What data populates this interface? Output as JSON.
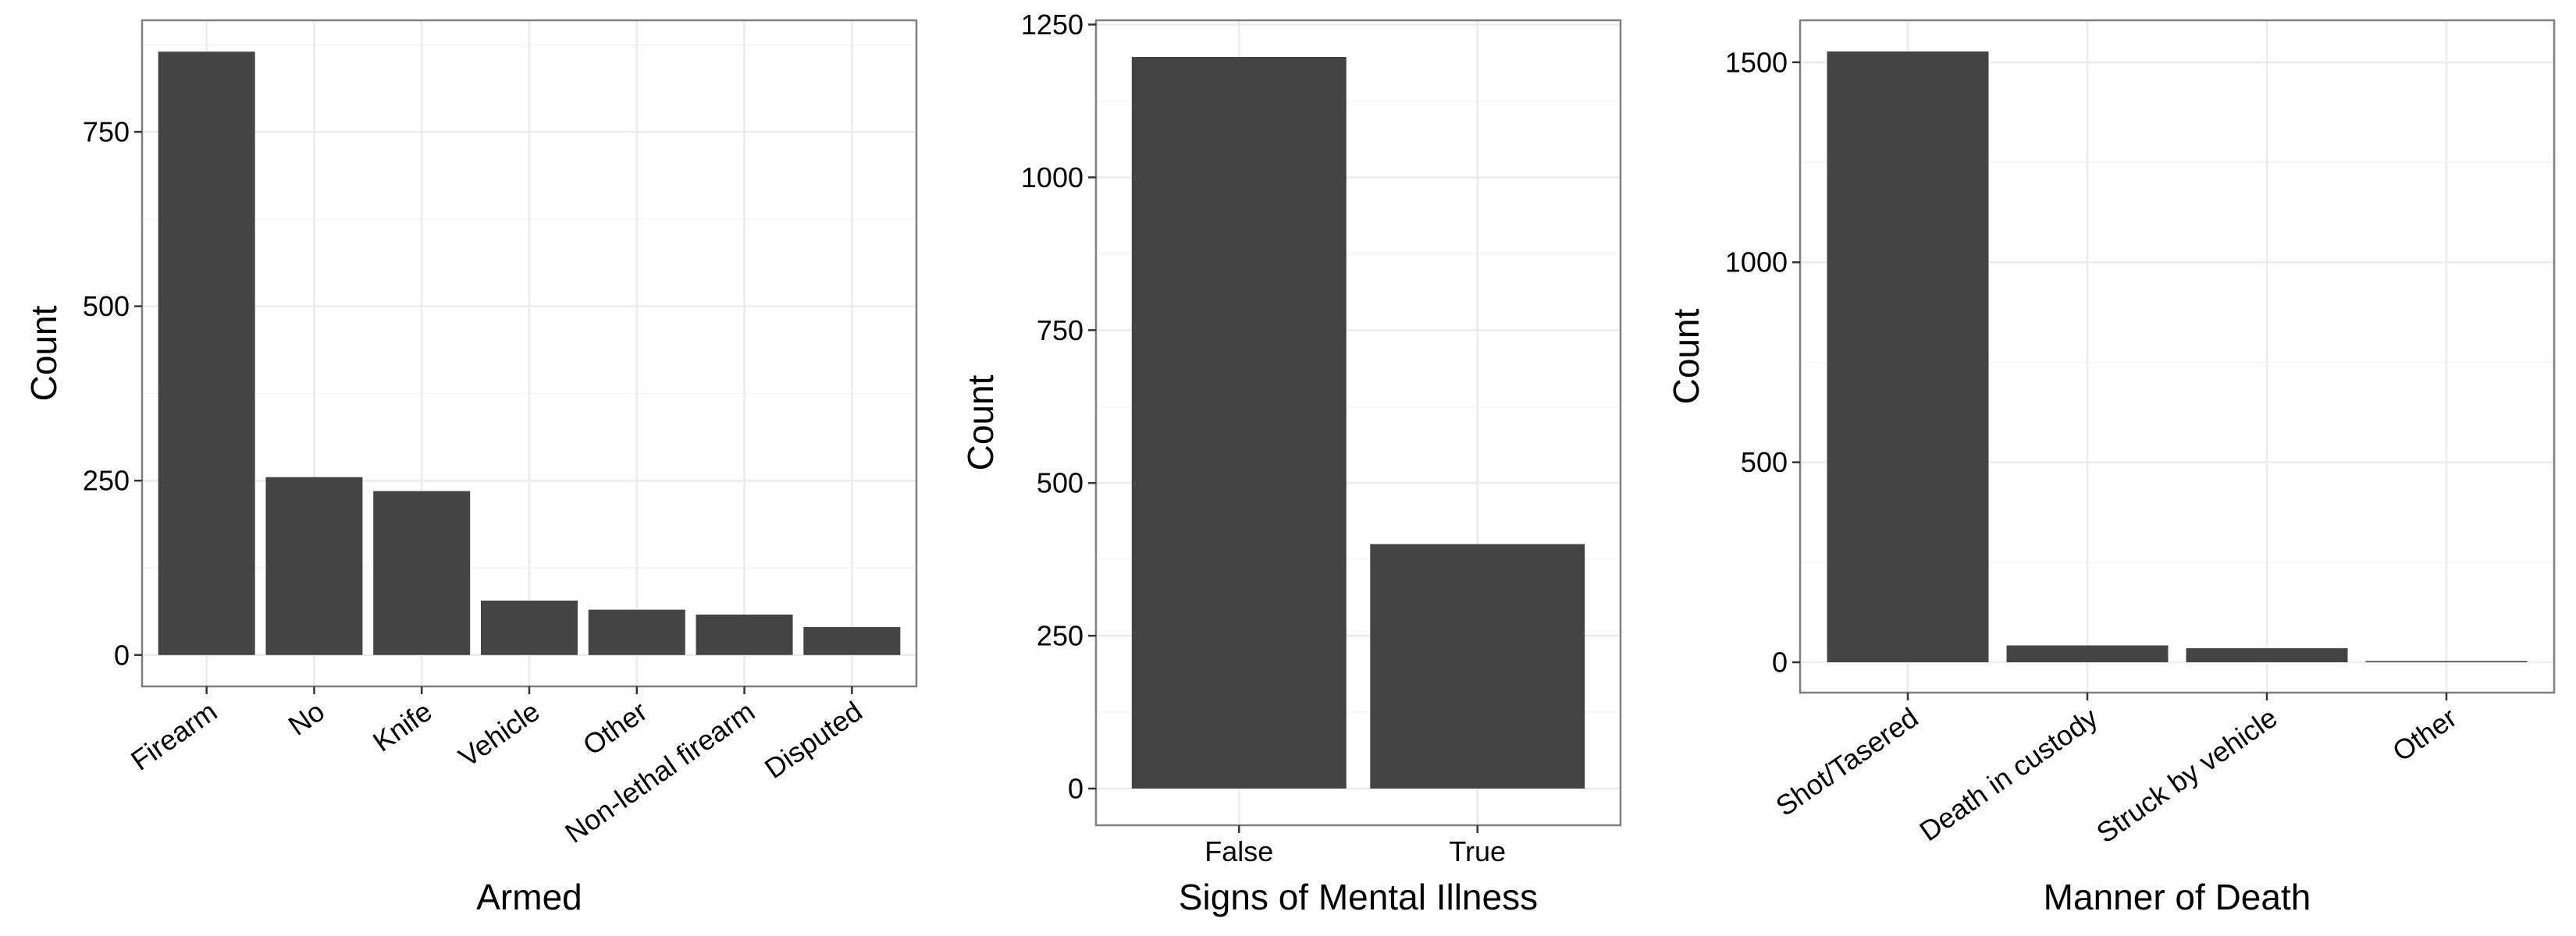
{
  "chart_data": [
    {
      "type": "bar",
      "xlabel": "Armed",
      "ylabel": "Count",
      "categories": [
        "Firearm",
        "No",
        "Knife",
        "Vehicle",
        "Other",
        "Non-lethal firearm",
        "Disputed"
      ],
      "values": [
        865,
        255,
        235,
        78,
        65,
        58,
        40
      ],
      "ylim": [
        -45,
        910
      ],
      "yticks": [
        0,
        250,
        500,
        750
      ],
      "ytick_labels": [
        "0",
        "250",
        "500",
        "750"
      ],
      "x_tick_rotation": 35,
      "grid": true,
      "bar_color": "#444444"
    },
    {
      "type": "bar",
      "xlabel": "Signs of Mental Illness",
      "ylabel": "Count",
      "categories": [
        "False",
        "True"
      ],
      "values": [
        1197,
        400
      ],
      "ylim": [
        -60,
        1257
      ],
      "yticks": [
        0,
        250,
        500,
        750,
        1000,
        1250
      ],
      "ytick_labels": [
        "0",
        "250",
        "500",
        "750",
        "1000",
        "1250"
      ],
      "x_tick_rotation": 0,
      "grid": true,
      "bar_color": "#444444"
    },
    {
      "type": "bar",
      "xlabel": "Manner of Death",
      "ylabel": "Count",
      "categories": [
        "Shot/Tasered",
        "Death in custody",
        "Struck by vehicle",
        "Other"
      ],
      "values": [
        1527,
        42,
        35,
        3
      ],
      "ylim": [
        -76,
        1605
      ],
      "yticks": [
        0,
        500,
        1000,
        1500
      ],
      "ytick_labels": [
        "0",
        "500",
        "1000",
        "1500"
      ],
      "x_tick_rotation": 35,
      "grid": true,
      "bar_color": "#444444"
    }
  ],
  "colors": {
    "bar": "#444444",
    "grid": "#ebebeb",
    "panel_border": "#7f7f7f",
    "background": "#ffffff"
  }
}
